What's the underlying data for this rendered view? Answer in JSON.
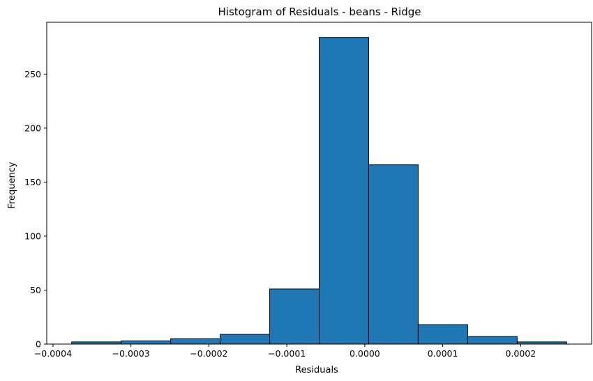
{
  "chart_data": {
    "type": "bar",
    "title": "Histogram of Residuals - beans  - Ridge",
    "xlabel": "Residuals",
    "ylabel": "Frequency",
    "bin_edges": [
      -0.000376,
      -0.0003125,
      -0.000249,
      -0.0001855,
      -0.000122,
      -5.85e-05,
      5e-06,
      6.85e-05,
      0.000132,
      0.0001955,
      0.000259
    ],
    "values": [
      2,
      3,
      5,
      9,
      51,
      284,
      166,
      18,
      7,
      2
    ],
    "xlim": [
      -0.000408,
      0.000291
    ],
    "ylim": [
      0,
      298
    ],
    "x_ticks": [
      -0.0004,
      -0.0003,
      -0.0002,
      -0.0001,
      0.0,
      0.0001,
      0.0002
    ],
    "x_tick_labels": [
      "−0.0004",
      "−0.0003",
      "−0.0002",
      "−0.0001",
      "0.0000",
      "0.0001",
      "0.0002"
    ],
    "y_ticks": [
      0,
      50,
      100,
      150,
      200,
      250
    ],
    "y_tick_labels": [
      "0",
      "50",
      "100",
      "150",
      "200",
      "250"
    ],
    "bar_color": "#1f77b4",
    "edge_color": "#000000",
    "grid": false,
    "legend": false
  }
}
